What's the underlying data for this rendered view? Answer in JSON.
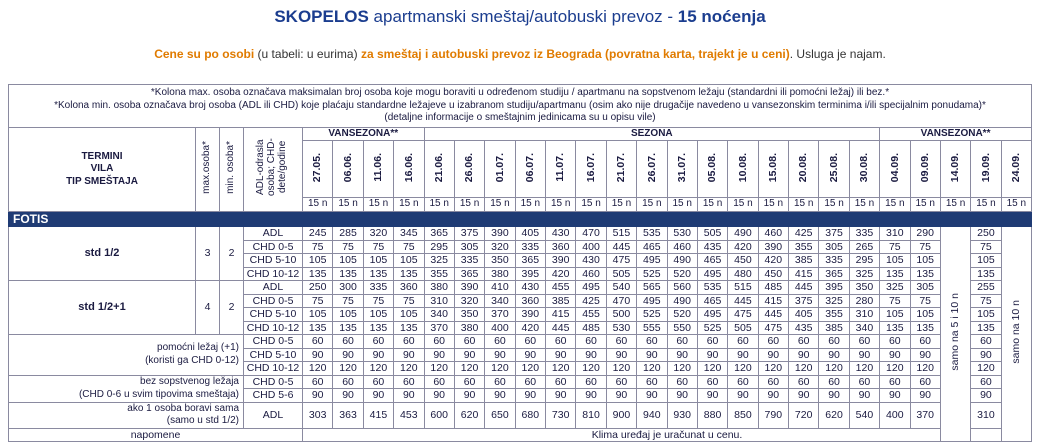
{
  "title": {
    "bold1": "SKOPELOS",
    "mid": " apartmanski smeštaj/autobuski prevoz - ",
    "bold2": "15 noćenja"
  },
  "subtitle": {
    "p1": "Cene su po osobi",
    "p2": " (u tabeli: u eurima) ",
    "p3": "za smeštaj i autobuski prevoz iz Beograda (povratna karta, trajekt je u ceni)",
    "p4": ". Usluga je najam."
  },
  "notes": [
    "*Kolona max. osoba označava maksimalan broj osoba koje mogu boraviti u određenom studiju / apartmanu na sopstvenom ležaju (standardni ili pomoćni ležaj) ili bez.*",
    "*Kolona min. osoba označava broj osoba (ADL ili CHD) koje plaćaju standardne ležajeve u izabranom studiju/apartmanu (osim ako nije drugačije navedeno u vansezonskim terminima i/ili specijalnim ponudama)*",
    "(detaljne informacije o smeštajnim jedinicama su u opisu vile)"
  ],
  "header": {
    "termini": "TERMINI",
    "vila": "VILA",
    "tip": "TIP SMEŠTAJA",
    "max_osoba": "max.osoba*",
    "min_osoba": "min. osoba*",
    "category": "ADL-odrasla osoba; CHD-dete/godine",
    "seasons": [
      "VANSEZONA**",
      "SEZONA",
      "VANSEZONA**"
    ],
    "dates": [
      "27.05.",
      "06.06.",
      "11.06.",
      "16.06.",
      "21.06.",
      "26.06.",
      "01.07.",
      "06.07.",
      "11.07.",
      "16.07.",
      "21.07.",
      "26.07.",
      "31.07.",
      "05.08.",
      "10.08.",
      "15.08.",
      "20.08.",
      "25.08.",
      "30.08.",
      "04.09.",
      "09.09.",
      "14.09.",
      "19.09.",
      "24.09."
    ],
    "nights": "15 n"
  },
  "villa": "FOTIS",
  "types": [
    {
      "name": "std 1/2",
      "max": "3",
      "min": "2",
      "rows": [
        {
          "cat": "ADL",
          "values": [
            "245",
            "285",
            "320",
            "345",
            "365",
            "375",
            "390",
            "405",
            "430",
            "470",
            "515",
            "535",
            "530",
            "505",
            "490",
            "460",
            "425",
            "375",
            "335",
            "310",
            "290",
            "250"
          ]
        },
        {
          "cat": "CHD 0-5",
          "values": [
            "75",
            "75",
            "75",
            "75",
            "295",
            "305",
            "320",
            "335",
            "360",
            "400",
            "445",
            "465",
            "460",
            "435",
            "420",
            "390",
            "355",
            "305",
            "265",
            "75",
            "75",
            "75"
          ]
        },
        {
          "cat": "CHD 5-10",
          "values": [
            "105",
            "105",
            "105",
            "105",
            "325",
            "335",
            "350",
            "365",
            "390",
            "430",
            "475",
            "495",
            "490",
            "465",
            "450",
            "420",
            "385",
            "335",
            "295",
            "105",
            "105",
            "105"
          ]
        },
        {
          "cat": "CHD 10-12",
          "values": [
            "135",
            "135",
            "135",
            "135",
            "355",
            "365",
            "380",
            "395",
            "420",
            "460",
            "505",
            "525",
            "520",
            "495",
            "480",
            "450",
            "415",
            "365",
            "325",
            "135",
            "135",
            "135"
          ]
        }
      ]
    },
    {
      "name": "std 1/2+1",
      "max": "4",
      "min": "2",
      "rows": [
        {
          "cat": "ADL",
          "values": [
            "250",
            "300",
            "335",
            "360",
            "380",
            "390",
            "410",
            "430",
            "455",
            "495",
            "540",
            "565",
            "560",
            "535",
            "515",
            "485",
            "445",
            "395",
            "350",
            "325",
            "305",
            "255"
          ]
        },
        {
          "cat": "CHD 0-5",
          "values": [
            "75",
            "75",
            "75",
            "75",
            "310",
            "320",
            "340",
            "360",
            "385",
            "425",
            "470",
            "495",
            "490",
            "465",
            "445",
            "415",
            "375",
            "325",
            "280",
            "75",
            "75",
            "75"
          ]
        },
        {
          "cat": "CHD 5-10",
          "values": [
            "105",
            "105",
            "105",
            "105",
            "340",
            "350",
            "370",
            "390",
            "415",
            "455",
            "500",
            "525",
            "520",
            "495",
            "475",
            "445",
            "405",
            "355",
            "310",
            "105",
            "105",
            "105"
          ]
        },
        {
          "cat": "CHD 10-12",
          "values": [
            "135",
            "135",
            "135",
            "135",
            "370",
            "380",
            "400",
            "420",
            "445",
            "485",
            "530",
            "555",
            "550",
            "525",
            "505",
            "475",
            "435",
            "385",
            "340",
            "135",
            "135",
            "135"
          ]
        }
      ]
    }
  ],
  "pomocni": {
    "label1": "pomoćni ležaj (+1)",
    "label2": "(koristi ga CHD 0-12)",
    "rows": [
      {
        "cat": "CHD 0-5",
        "values": [
          "60",
          "60",
          "60",
          "60",
          "60",
          "60",
          "60",
          "60",
          "60",
          "60",
          "60",
          "60",
          "60",
          "60",
          "60",
          "60",
          "60",
          "60",
          "60",
          "60",
          "60",
          "60"
        ]
      },
      {
        "cat": "CHD 5-10",
        "values": [
          "90",
          "90",
          "90",
          "90",
          "90",
          "90",
          "90",
          "90",
          "90",
          "90",
          "90",
          "90",
          "90",
          "90",
          "90",
          "90",
          "90",
          "90",
          "90",
          "90",
          "90",
          "90"
        ]
      },
      {
        "cat": "CHD 10-12",
        "values": [
          "120",
          "120",
          "120",
          "120",
          "120",
          "120",
          "120",
          "120",
          "120",
          "120",
          "120",
          "120",
          "120",
          "120",
          "120",
          "120",
          "120",
          "120",
          "120",
          "120",
          "120",
          "120"
        ]
      }
    ]
  },
  "bez": {
    "label1": "bez sopstvenog ležaja",
    "label2": "(CHD 0-6 u svim tipovima smeštaja)",
    "rows": [
      {
        "cat": "CHD 0-5",
        "values": [
          "60",
          "60",
          "60",
          "60",
          "60",
          "60",
          "60",
          "60",
          "60",
          "60",
          "60",
          "60",
          "60",
          "60",
          "60",
          "60",
          "60",
          "60",
          "60",
          "60",
          "60",
          "60"
        ]
      },
      {
        "cat": "CHD 5-6",
        "values": [
          "90",
          "90",
          "90",
          "90",
          "90",
          "90",
          "90",
          "90",
          "90",
          "90",
          "90",
          "90",
          "90",
          "90",
          "90",
          "90",
          "90",
          "90",
          "90",
          "90",
          "90",
          "90"
        ]
      }
    ]
  },
  "sama": {
    "label1": "ako 1 osoba boravi sama",
    "label2": "(samo u std 1/2)",
    "cat": "ADL",
    "values": [
      "303",
      "363",
      "415",
      "453",
      "600",
      "620",
      "650",
      "680",
      "730",
      "810",
      "900",
      "940",
      "930",
      "880",
      "850",
      "790",
      "720",
      "620",
      "540",
      "400",
      "370",
      "310"
    ]
  },
  "special": {
    "col1": "samo na 5 i 10 n",
    "col2": "samo na 10 n"
  },
  "napomene": {
    "label": "napomene",
    "text": "Klima uređaj je uračunat u cenu."
  }
}
